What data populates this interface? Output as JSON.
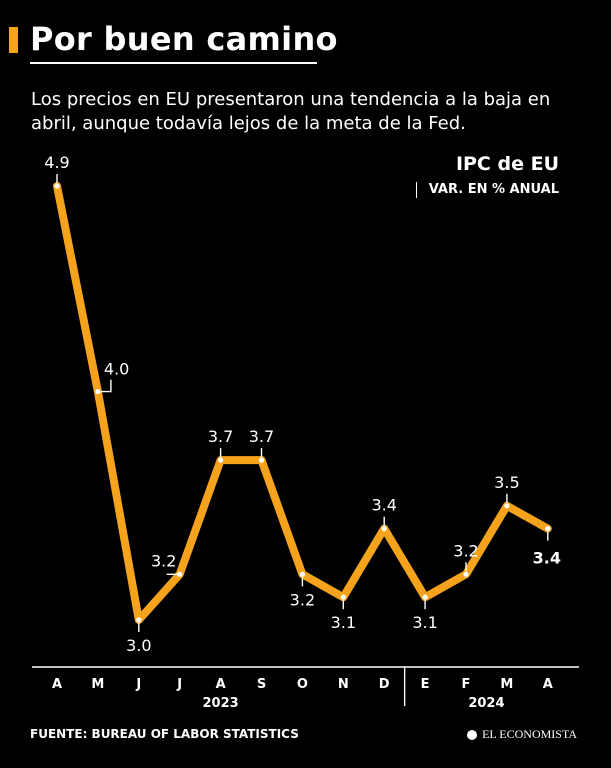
{
  "header": {
    "title": "Por buen camino",
    "subtitle": "Los precios en EU presentaron una tendencia a la baja en abril, aunque todavía lejos de la meta de la Fed."
  },
  "legend": {
    "title": "IPC de EU",
    "subtitle": "VAR. EN % ANUAL"
  },
  "footer": {
    "source": "FUENTE: BUREAU OF LABOR STATISTICS",
    "brand": "EL ECONOMISTA"
  },
  "colors": {
    "line": "#f5a31c",
    "background": "#000000",
    "text": "#ffffff"
  },
  "chart_data": {
    "type": "line",
    "title": "IPC de EU",
    "ylabel": "VAR. EN % ANUAL",
    "xlabel": "",
    "categories": [
      "A",
      "M",
      "J",
      "J",
      "A",
      "S",
      "O",
      "N",
      "D",
      "E",
      "F",
      "M",
      "A"
    ],
    "values": [
      4.9,
      4.0,
      3.0,
      3.2,
      3.7,
      3.7,
      3.2,
      3.1,
      3.4,
      3.1,
      3.2,
      3.5,
      3.4
    ],
    "value_labels": [
      "4.9",
      "4.0",
      "3.0",
      "3.2",
      "3.7",
      "3.7",
      "3.2",
      "3.1",
      "3.4",
      "3.1",
      "3.2",
      "3.5",
      "3.4"
    ],
    "years": [
      {
        "label": "2023",
        "from": 0,
        "to": 8
      },
      {
        "label": "2024",
        "from": 9,
        "to": 12
      }
    ],
    "ylim": [
      2.9,
      5.0
    ],
    "grid": false,
    "highlight_last": true
  }
}
